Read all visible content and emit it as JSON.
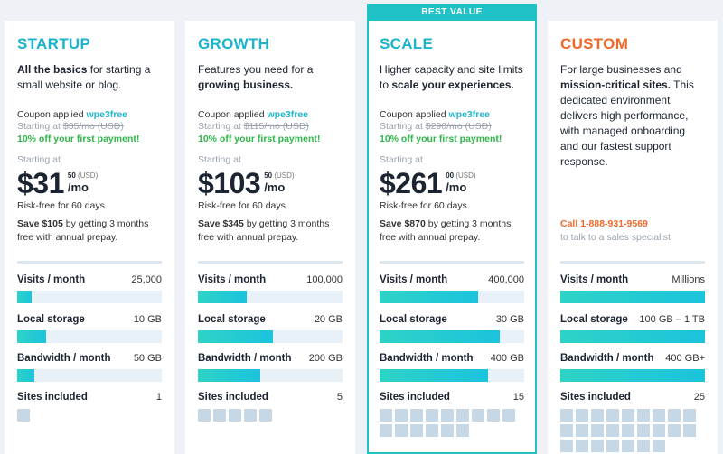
{
  "best_value_label": "BEST VALUE",
  "plans": [
    {
      "name": "STARTUP",
      "name_color": "#1cb3cc",
      "desc_bold": "All the basics",
      "desc_rest": " for starting a small website or blog.",
      "coupon_text": "Coupon applied ",
      "coupon_code": "wpe3free",
      "starting_prefix": "Starting at ",
      "old_price": "$35/mo (USD)",
      "discount": "10% off your first payment!",
      "starting_at": "Starting at",
      "price": "$31",
      "cents": "50",
      "currency": "(USD)",
      "per": "/mo",
      "risk": "Risk-free for 60 days.",
      "save_bold": "Save $105",
      "save_rest": " by getting 3 months free with annual prepay.",
      "metrics": [
        {
          "label": "Visits / month",
          "value": "25,000",
          "fill": 0.1
        },
        {
          "label": "Local storage",
          "value": "10 GB",
          "fill": 0.2
        },
        {
          "label": "Bandwidth / month",
          "value": "50 GB",
          "fill": 0.12
        }
      ],
      "sites_label": "Sites included",
      "sites_value": "1",
      "sites_count": 1
    },
    {
      "name": "GROWTH",
      "name_color": "#1cb3cc",
      "desc_pre": "Features you need for a ",
      "desc_bold": "growing business.",
      "coupon_text": "Coupon applied ",
      "coupon_code": "wpe3free",
      "starting_prefix": "Starting at ",
      "old_price": "$115/mo (USD)",
      "discount": "10% off your first payment!",
      "starting_at": "Starting at",
      "price": "$103",
      "cents": "50",
      "currency": "(USD)",
      "per": "/mo",
      "risk": "Risk-free for 60 days.",
      "save_bold": "Save $345",
      "save_rest": " by getting 3 months free with annual prepay.",
      "metrics": [
        {
          "label": "Visits / month",
          "value": "100,000",
          "fill": 0.34
        },
        {
          "label": "Local storage",
          "value": "20 GB",
          "fill": 0.52
        },
        {
          "label": "Bandwidth / month",
          "value": "200 GB",
          "fill": 0.43
        }
      ],
      "sites_label": "Sites included",
      "sites_value": "5",
      "sites_count": 5
    },
    {
      "name": "SCALE",
      "name_color": "#1cb3cc",
      "desc_pre": "Higher capacity and site limits to ",
      "desc_bold": "scale your experiences.",
      "coupon_text": "Coupon applied ",
      "coupon_code": "wpe3free",
      "starting_prefix": "Starting at ",
      "old_price": "$290/mo (USD)",
      "discount": "10% off your first payment!",
      "starting_at": "Starting at",
      "price": "$261",
      "cents": "00",
      "currency": "(USD)",
      "per": "/mo",
      "risk": "Risk-free for 60 days.",
      "save_bold": "Save $870",
      "save_rest": " by getting 3 months free with annual prepay.",
      "metrics": [
        {
          "label": "Visits / month",
          "value": "400,000",
          "fill": 0.68
        },
        {
          "label": "Local storage",
          "value": "30 GB",
          "fill": 0.83
        },
        {
          "label": "Bandwidth / month",
          "value": "400 GB",
          "fill": 0.75
        }
      ],
      "sites_label": "Sites included",
      "sites_value": "15",
      "sites_count": 15
    },
    {
      "name": "CUSTOM",
      "name_color": "#ef6a2a",
      "desc_pre": "For large businesses and ",
      "desc_bold": "mission-critical sites.",
      "desc_rest": " This dedicated environment delivers high performance, with managed onboarding and our fastest support response.",
      "phone": "Call 1-888-931-9569",
      "phone_rest": "to talk to a sales specialist",
      "metrics": [
        {
          "label": "Visits / month",
          "value": "Millions",
          "fill": 1.0
        },
        {
          "label": "Local storage",
          "value": "100 GB – 1 TB",
          "fill": 1.0
        },
        {
          "label": "Bandwidth / month",
          "value": "400 GB+",
          "fill": 1.0
        }
      ],
      "sites_label": "Sites included",
      "sites_value": "25",
      "sites_count": 25
    }
  ]
}
